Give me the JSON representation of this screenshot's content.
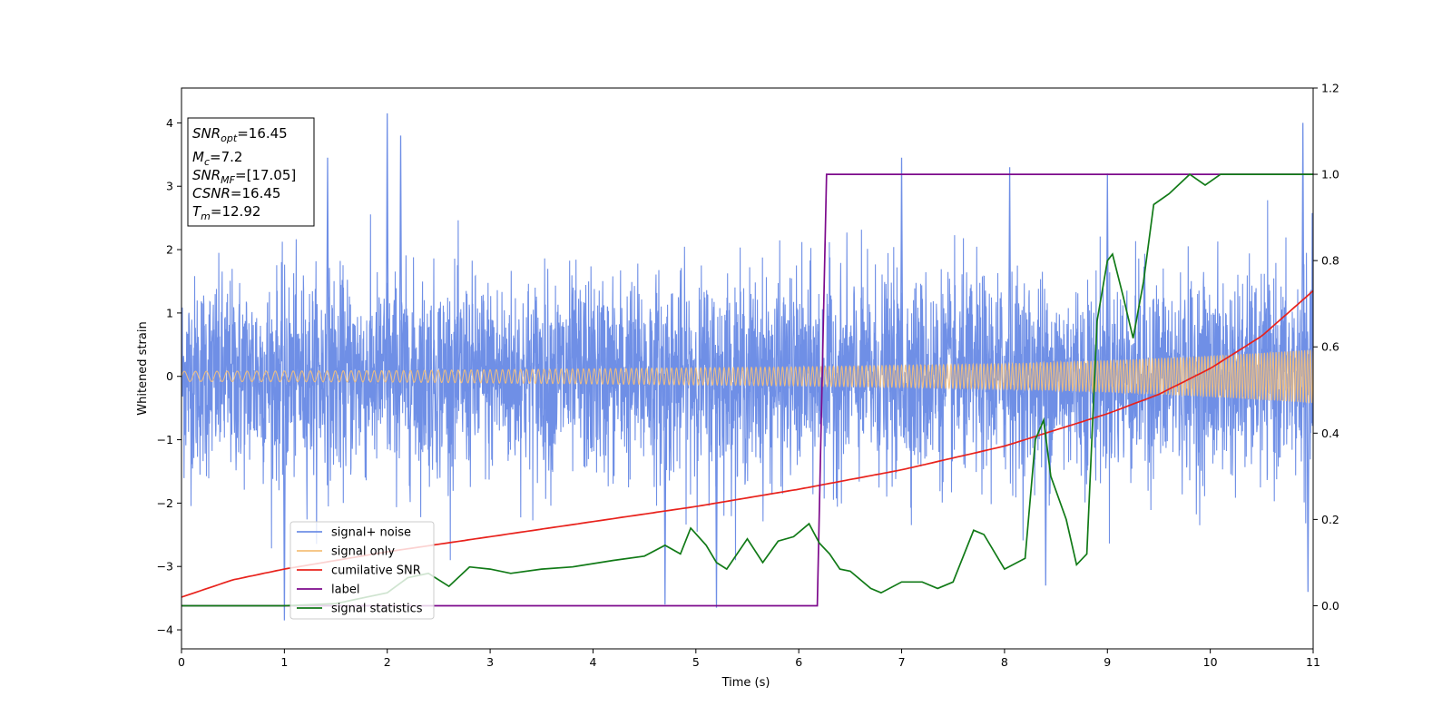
{
  "chart_data": {
    "type": "line",
    "title": "",
    "xlabel": "Time (s)",
    "ylabel": "Whitened strain",
    "xlim": [
      0,
      11
    ],
    "ylim_left": [
      -4.3,
      4.55
    ],
    "ylim_right": [
      -0.1,
      1.2
    ],
    "x_ticks": [
      "0",
      "1",
      "2",
      "3",
      "4",
      "5",
      "6",
      "7",
      "8",
      "9",
      "10",
      "11"
    ],
    "y_ticks_left": [
      "−4",
      "−3",
      "−2",
      "−1",
      "0",
      "1",
      "2",
      "3",
      "4"
    ],
    "y_ticks_right": [
      "0.0",
      "0.2",
      "0.4",
      "0.6",
      "0.8",
      "1.0",
      "1.2"
    ],
    "grid": false,
    "legend_position": "lower-left",
    "colors": {
      "signal_noise": "#6f8fe6",
      "signal_only": "#f5c07a",
      "cumulative_snr": "#e8221c",
      "label": "#7d0a8c",
      "signal_statistics": "#117a17"
    },
    "series": [
      {
        "name": "signal+ noise",
        "axis": "left",
        "description_values": "dense noise roughly within ±2.3 with spikes up to 4.15 and down to -3.85",
        "spikes": [
          {
            "x": 1.0,
            "y": -3.85
          },
          {
            "x": 1.42,
            "y": 3.45
          },
          {
            "x": 2.0,
            "y": 4.15
          },
          {
            "x": 2.13,
            "y": 3.8
          },
          {
            "x": 4.7,
            "y": -3.6
          },
          {
            "x": 5.2,
            "y": -3.65
          },
          {
            "x": 7.0,
            "y": 3.45
          },
          {
            "x": 8.05,
            "y": 3.3
          },
          {
            "x": 8.4,
            "y": -3.3
          },
          {
            "x": 9.0,
            "y": 3.2
          },
          {
            "x": 10.9,
            "y": 4.0
          },
          {
            "x": 10.95,
            "y": -3.4
          }
        ]
      },
      {
        "name": "signal only",
        "axis": "left",
        "amplitude_points": [
          [
            0,
            0.08
          ],
          [
            2,
            0.09
          ],
          [
            4,
            0.12
          ],
          [
            6,
            0.15
          ],
          [
            8,
            0.2
          ],
          [
            9,
            0.25
          ],
          [
            10,
            0.32
          ],
          [
            11,
            0.42
          ]
        ]
      },
      {
        "name": "cumilative SNR",
        "axis": "right",
        "points": [
          [
            0,
            0.02
          ],
          [
            0.5,
            0.06
          ],
          [
            1,
            0.085
          ],
          [
            2,
            0.125
          ],
          [
            3,
            0.16
          ],
          [
            4,
            0.195
          ],
          [
            5,
            0.23
          ],
          [
            6,
            0.27
          ],
          [
            7,
            0.315
          ],
          [
            8,
            0.37
          ],
          [
            9,
            0.445
          ],
          [
            9.5,
            0.49
          ],
          [
            10,
            0.55
          ],
          [
            10.5,
            0.625
          ],
          [
            11,
            0.73
          ]
        ]
      },
      {
        "name": "label",
        "axis": "right",
        "points": [
          [
            0,
            0.0
          ],
          [
            6.18,
            0.0
          ],
          [
            6.27,
            1.0
          ],
          [
            11,
            1.0
          ]
        ]
      },
      {
        "name": "signal statistics",
        "axis": "right",
        "points": [
          [
            0,
            0.0
          ],
          [
            1.0,
            0.0
          ],
          [
            1.5,
            0.005
          ],
          [
            2.0,
            0.03
          ],
          [
            2.2,
            0.065
          ],
          [
            2.4,
            0.075
          ],
          [
            2.6,
            0.045
          ],
          [
            2.8,
            0.09
          ],
          [
            3.0,
            0.085
          ],
          [
            3.2,
            0.075
          ],
          [
            3.5,
            0.085
          ],
          [
            3.8,
            0.09
          ],
          [
            4.2,
            0.105
          ],
          [
            4.5,
            0.115
          ],
          [
            4.7,
            0.14
          ],
          [
            4.85,
            0.12
          ],
          [
            4.95,
            0.18
          ],
          [
            5.1,
            0.14
          ],
          [
            5.2,
            0.1
          ],
          [
            5.3,
            0.085
          ],
          [
            5.5,
            0.155
          ],
          [
            5.65,
            0.1
          ],
          [
            5.8,
            0.15
          ],
          [
            5.95,
            0.16
          ],
          [
            6.1,
            0.19
          ],
          [
            6.2,
            0.145
          ],
          [
            6.3,
            0.12
          ],
          [
            6.4,
            0.085
          ],
          [
            6.5,
            0.08
          ],
          [
            6.7,
            0.04
          ],
          [
            6.8,
            0.03
          ],
          [
            7.0,
            0.055
          ],
          [
            7.2,
            0.055
          ],
          [
            7.35,
            0.04
          ],
          [
            7.5,
            0.055
          ],
          [
            7.7,
            0.175
          ],
          [
            7.8,
            0.165
          ],
          [
            8.0,
            0.085
          ],
          [
            8.2,
            0.11
          ],
          [
            8.3,
            0.385
          ],
          [
            8.38,
            0.43
          ],
          [
            8.45,
            0.3
          ],
          [
            8.6,
            0.2
          ],
          [
            8.7,
            0.095
          ],
          [
            8.8,
            0.12
          ],
          [
            8.9,
            0.66
          ],
          [
            9.0,
            0.8
          ],
          [
            9.05,
            0.815
          ],
          [
            9.15,
            0.72
          ],
          [
            9.25,
            0.62
          ],
          [
            9.35,
            0.75
          ],
          [
            9.45,
            0.93
          ],
          [
            9.6,
            0.955
          ],
          [
            9.8,
            1.0
          ],
          [
            9.95,
            0.975
          ],
          [
            10.1,
            1.0
          ],
          [
            10.5,
            1.0
          ],
          [
            11,
            1.0
          ]
        ]
      }
    ],
    "annotations": [
      {
        "main": "SNR",
        "sub": "opt",
        "suffix": "=16.45"
      },
      {
        "main": "M",
        "sub": "c",
        "suffix": "=7.2"
      },
      {
        "main": "SNR",
        "sub": "MF",
        "suffix": "=[17.05]"
      },
      {
        "main": "CSNR",
        "sub": "",
        "suffix": "=16.45"
      },
      {
        "main": "T",
        "sub": "m",
        "suffix": "=12.92"
      }
    ]
  }
}
